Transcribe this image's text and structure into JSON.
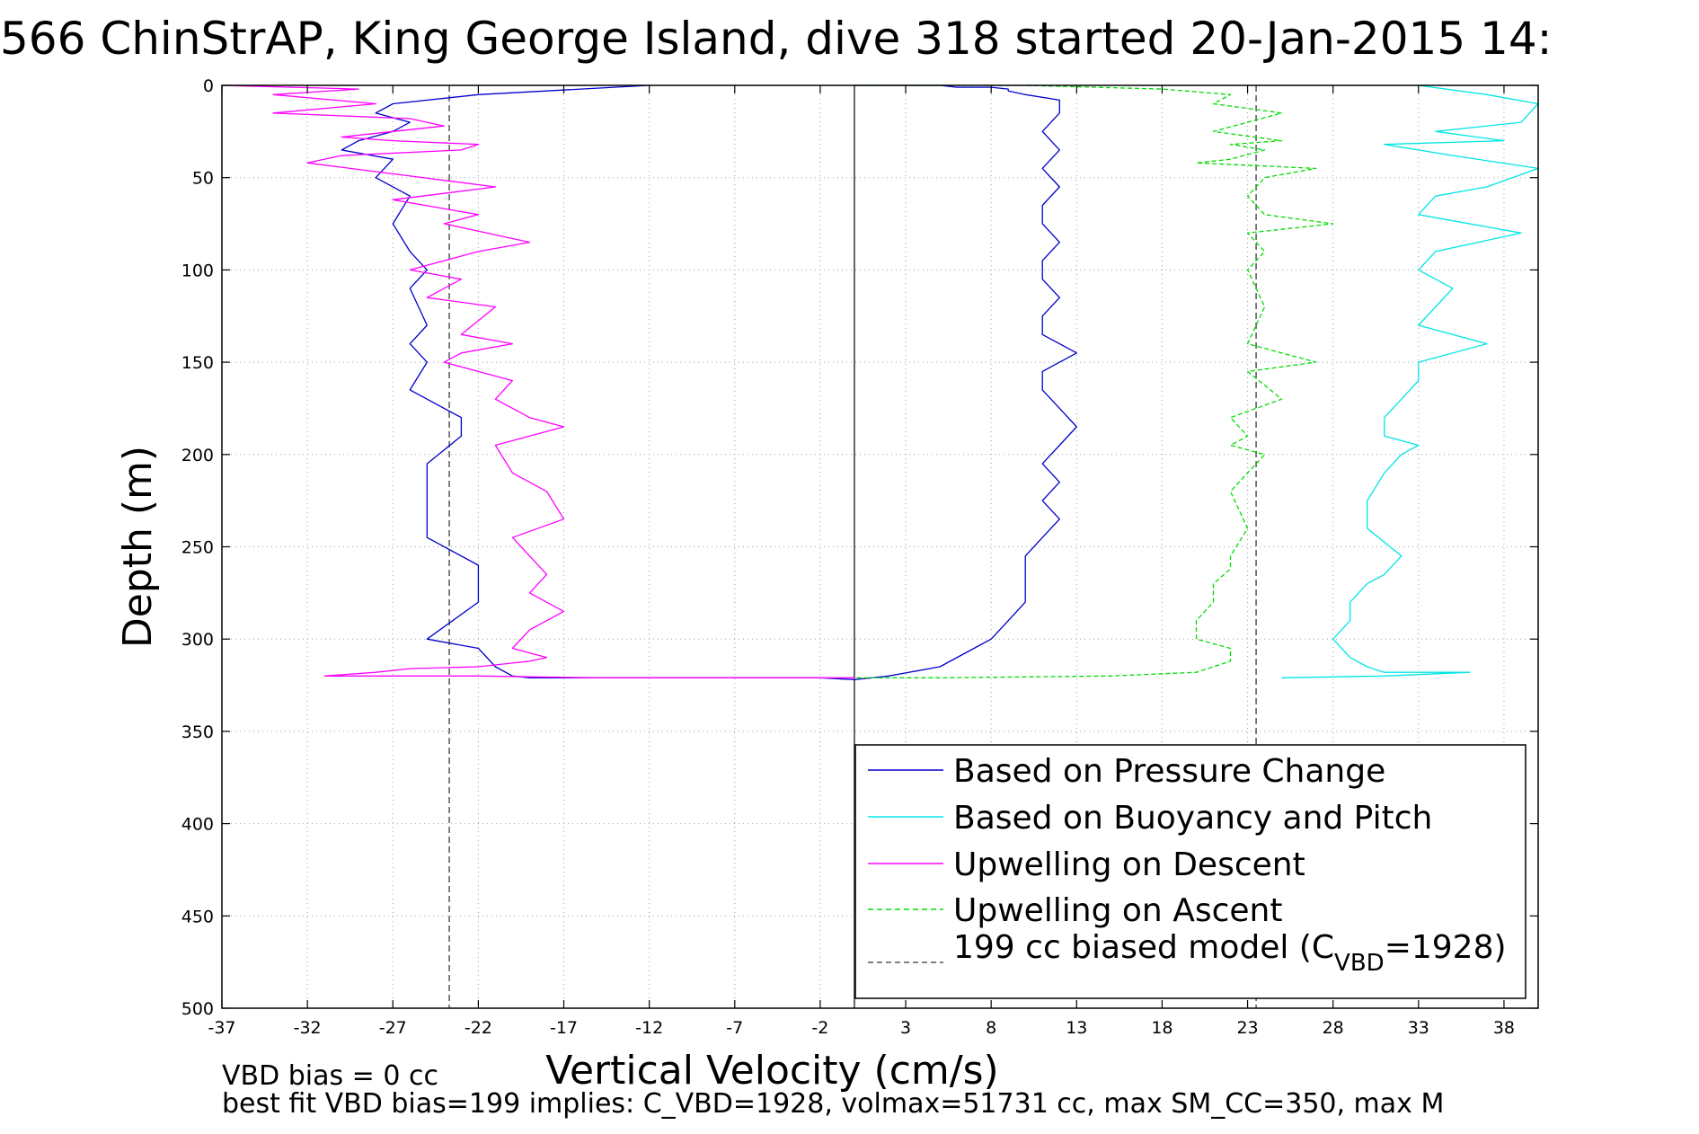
{
  "chart_data": {
    "type": "line",
    "title": "566 ChinStrAP, King George Island, dive 318 started 20-Jan-2015 14:",
    "xlabel": "Vertical Velocity (cm/s)",
    "ylabel": "Depth (m)",
    "xlim": [
      -37,
      40
    ],
    "ylim": [
      0,
      500
    ],
    "y_reversed": true,
    "grid": true,
    "xticks": [
      -37,
      -32,
      -27,
      -22,
      -17,
      -12,
      -7,
      -2,
      3,
      8,
      13,
      18,
      23,
      28,
      33,
      38
    ],
    "yticks": [
      0,
      50,
      100,
      150,
      200,
      250,
      300,
      350,
      400,
      450,
      500
    ],
    "xtick_labels": [
      "-37",
      "-32",
      "-27",
      "-22",
      "-17",
      "-12",
      "-7",
      "-2",
      "3",
      "8",
      "13",
      "18",
      "23",
      "28",
      "33",
      "38"
    ],
    "ytick_labels": [
      "0",
      "50",
      "100",
      "150",
      "200",
      "250",
      "300",
      "350",
      "400",
      "450",
      "500"
    ],
    "zero_line_x": 0,
    "model_lines_x": [
      -23.7,
      23.5
    ],
    "legend_position": "bottom-right",
    "series": [
      {
        "name": "Based on Pressure Change",
        "color": "#0000cc",
        "style": "solid",
        "x": [
          -12,
          -22,
          -27,
          -28,
          -26,
          -27,
          -29,
          -30,
          -27,
          -28,
          -26,
          -27,
          -26,
          -25,
          -26,
          -25,
          -26,
          -25,
          -26,
          -23,
          -23,
          -25,
          -25,
          -25,
          -22,
          -22,
          -25,
          -22,
          -21,
          -20,
          -19,
          -2,
          0,
          2,
          5,
          7,
          8,
          9,
          10,
          10,
          10,
          11,
          12,
          11,
          12,
          11,
          12,
          13,
          12,
          11,
          11,
          13,
          11,
          11,
          12,
          11,
          11,
          12,
          11,
          11,
          12,
          11,
          12,
          11,
          12,
          12,
          10,
          9,
          9,
          8,
          6,
          5,
          3,
          0
        ],
        "y": [
          0,
          5,
          10,
          15,
          20,
          25,
          30,
          35,
          40,
          50,
          60,
          75,
          90,
          100,
          110,
          130,
          140,
          150,
          165,
          180,
          190,
          205,
          230,
          245,
          260,
          280,
          300,
          305,
          315,
          320,
          321,
          321,
          322,
          320,
          315,
          305,
          300,
          290,
          280,
          270,
          255,
          245,
          235,
          225,
          215,
          205,
          195,
          185,
          175,
          165,
          155,
          145,
          135,
          125,
          115,
          105,
          95,
          85,
          75,
          65,
          55,
          45,
          35,
          25,
          15,
          8,
          5,
          3,
          2,
          1,
          1,
          0,
          0,
          0
        ]
      },
      {
        "name": "Based on Buoyancy and Pitch",
        "color": "#00e5e5",
        "style": "solid",
        "x": [
          33,
          37,
          40,
          39,
          34,
          38,
          31,
          35,
          40,
          37,
          34,
          33,
          39,
          34,
          33,
          35,
          34,
          33,
          37,
          33,
          33,
          32,
          31,
          31,
          33,
          32,
          31,
          30,
          30,
          32,
          31,
          30,
          29,
          29,
          28,
          29,
          30,
          31,
          33,
          36,
          31,
          25
        ],
        "y": [
          0,
          5,
          10,
          20,
          25,
          30,
          32,
          38,
          45,
          55,
          60,
          70,
          80,
          90,
          100,
          110,
          120,
          130,
          140,
          150,
          160,
          170,
          180,
          190,
          195,
          200,
          210,
          225,
          240,
          255,
          265,
          270,
          280,
          290,
          300,
          310,
          315,
          318,
          318,
          318,
          320,
          321
        ]
      },
      {
        "name": "Upwelling on Descent",
        "color": "#ff00ff",
        "style": "solid",
        "x": [
          -37,
          -29,
          -34,
          -28,
          -34,
          -26,
          -24,
          -30,
          -27,
          -22,
          -23,
          -30,
          -32,
          -21,
          -27,
          -22,
          -24,
          -19,
          -22,
          -26,
          -23,
          -25,
          -21,
          -23,
          -20,
          -23,
          -24,
          -20,
          -21,
          -19,
          -17,
          -21,
          -20,
          -18,
          -17,
          -20,
          -19,
          -18,
          -19,
          -17,
          -19,
          -20,
          -18,
          -19,
          -20,
          -22,
          -26,
          -28,
          -31,
          -22,
          -15,
          -5,
          0
        ],
        "y": [
          0,
          2,
          5,
          10,
          15,
          18,
          22,
          28,
          30,
          32,
          35,
          38,
          42,
          55,
          62,
          70,
          75,
          85,
          90,
          100,
          105,
          115,
          120,
          135,
          140,
          145,
          150,
          160,
          170,
          180,
          185,
          195,
          210,
          220,
          235,
          245,
          255,
          265,
          275,
          285,
          295,
          305,
          310,
          312,
          313,
          315,
          316,
          318,
          320,
          320,
          321,
          321,
          321
        ]
      },
      {
        "name": "Upwelling on Ascent",
        "color": "#00dd00",
        "style": "dashed",
        "x": [
          0,
          10,
          18,
          22,
          21,
          25,
          23,
          21,
          25,
          22,
          24,
          22,
          20,
          27,
          24,
          23,
          24,
          28,
          23,
          24,
          23,
          24,
          23,
          27,
          23,
          25,
          22,
          23,
          22,
          24,
          22,
          23,
          22,
          22,
          21,
          21,
          20,
          20,
          22,
          22,
          20,
          15,
          5,
          0
        ],
        "y": [
          0,
          0,
          2,
          5,
          10,
          15,
          20,
          25,
          30,
          32,
          35,
          40,
          42,
          45,
          50,
          60,
          70,
          75,
          80,
          90,
          100,
          120,
          140,
          150,
          155,
          170,
          180,
          190,
          195,
          200,
          220,
          240,
          255,
          262,
          270,
          280,
          290,
          300,
          305,
          312,
          318,
          320,
          321,
          321
        ]
      },
      {
        "name": "199 cc biased model (C_VBD=1928)",
        "color": "#555555",
        "style": "dashed",
        "x": [
          -23.7,
          -23.7
        ],
        "y": [
          0,
          500
        ]
      }
    ],
    "legend": {
      "entries": [
        "Based on Pressure Change",
        "Based on Buoyancy and Pitch",
        "Upwelling on Descent",
        "Upwelling on Ascent",
        "199 cc biased model (C"
      ],
      "model_sub": "VBD",
      "model_tail": "=1928)"
    },
    "annotations": [
      "VBD bias = 0 cc",
      "best fit VBD bias=199 implies: C_VBD=1928, volmax=51731 cc, max SM_CC=350, max M"
    ]
  }
}
